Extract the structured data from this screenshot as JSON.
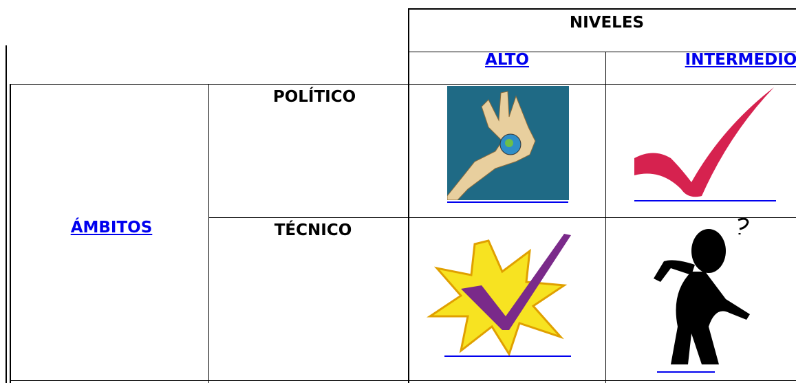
{
  "table": {
    "header": {
      "title": "NIVELES",
      "columns": [
        "ALTO",
        "INTERMEDIO"
      ]
    },
    "row_group": "ÁMBITOS",
    "rows": [
      "POLÍTICO",
      "TÉCNICO"
    ]
  }
}
